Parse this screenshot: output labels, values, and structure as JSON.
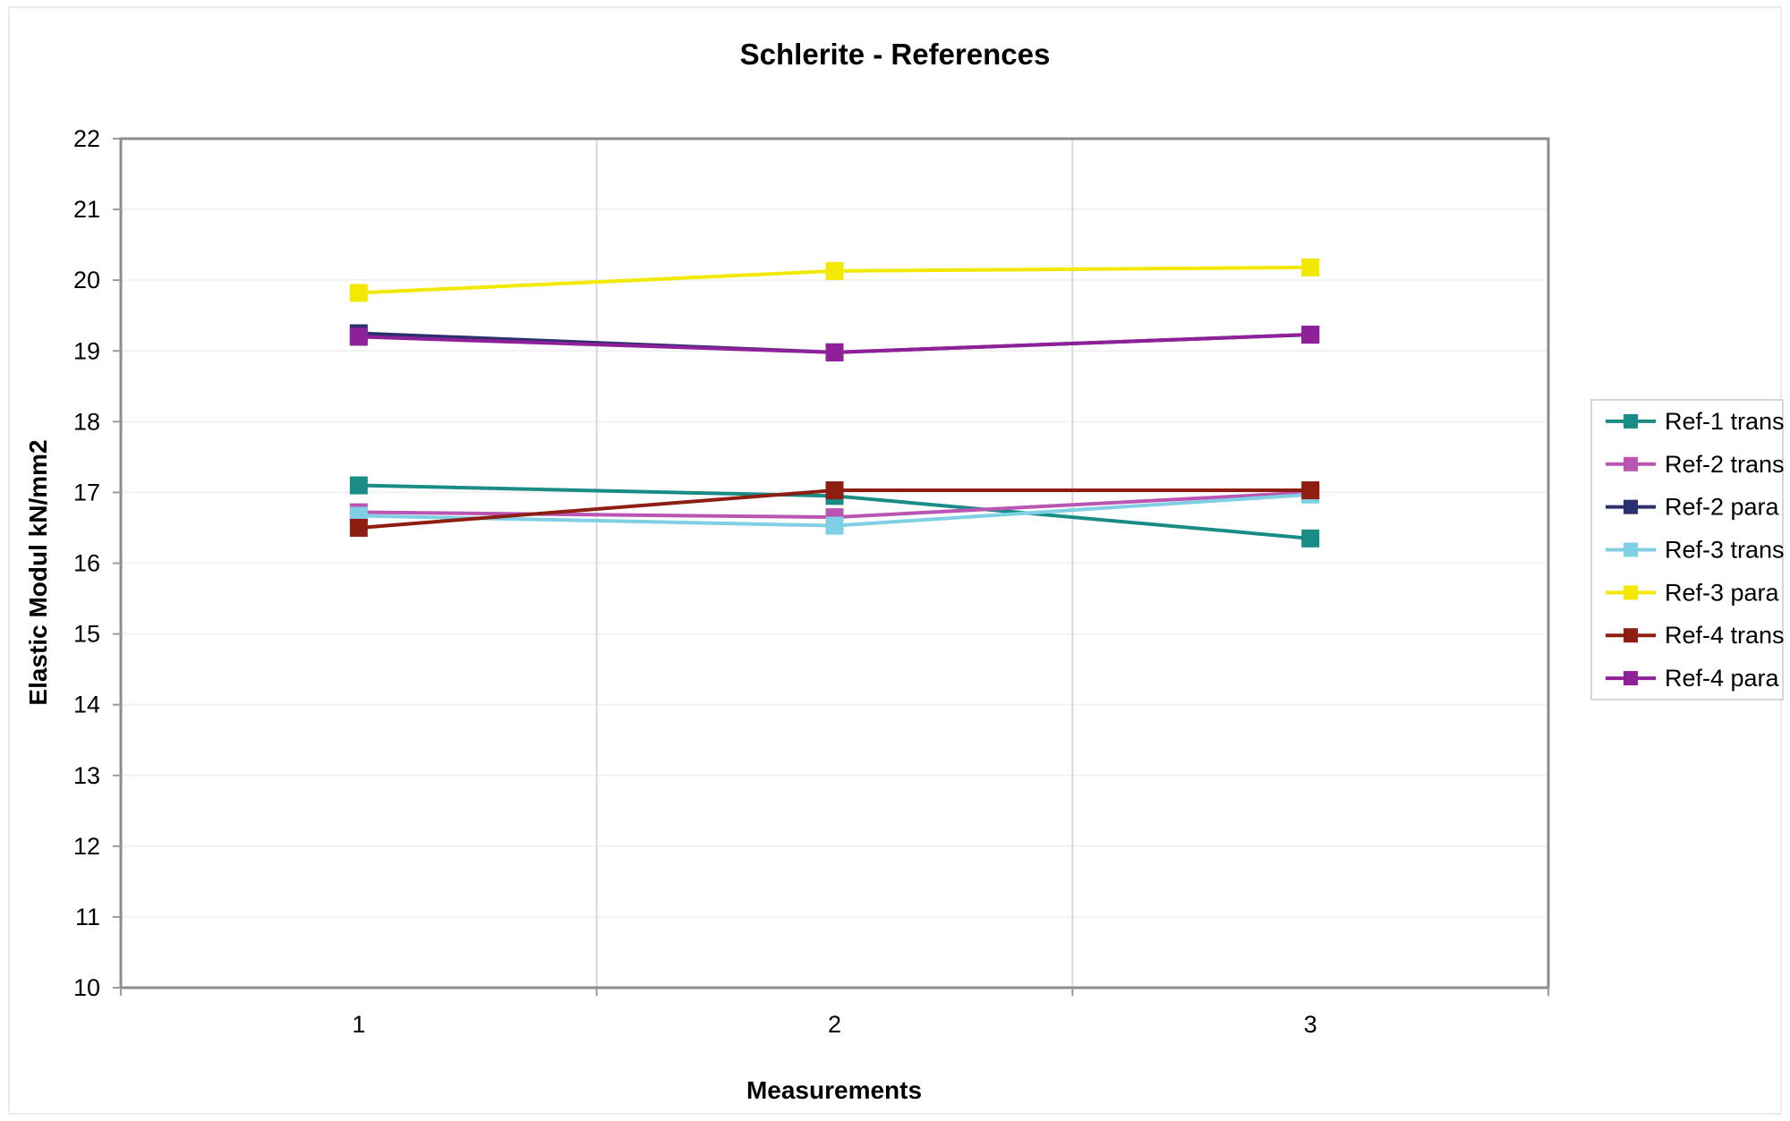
{
  "figure": {
    "background": "#ffffff",
    "outer_border_color": "#e4e4e4"
  },
  "chart_data": {
    "type": "line",
    "title": "Schlerite - References",
    "xlabel": "Measurements",
    "ylabel": "Elastic Modul kN/mm2",
    "categories": [
      "1",
      "2",
      "3"
    ],
    "ylim": [
      10,
      22
    ],
    "yticks": [
      10,
      11,
      12,
      13,
      14,
      15,
      16,
      17,
      18,
      19,
      20,
      21,
      22
    ],
    "grid": {
      "horizontal": true,
      "vertical": true
    },
    "legend_position": "right",
    "marker": "square",
    "series": [
      {
        "name": "Ref-1 trans",
        "color": "#1A8C86",
        "values": [
          17.1,
          16.95,
          16.35
        ]
      },
      {
        "name": "Ref-2 trans",
        "color": "#BA55B3",
        "values": [
          16.72,
          16.65,
          17.0
        ]
      },
      {
        "name": "Ref-2 para",
        "color": "#2C2F6E",
        "values": [
          19.25,
          18.98,
          19.23
        ]
      },
      {
        "name": "Ref-3 trans",
        "color": "#7FD0E4",
        "values": [
          16.67,
          16.53,
          16.97
        ]
      },
      {
        "name": "Ref-3 para",
        "color": "#F2E800",
        "values": [
          19.82,
          20.13,
          20.18
        ]
      },
      {
        "name": "Ref-4 trans",
        "color": "#8E1D12",
        "values": [
          16.5,
          17.03,
          17.03
        ]
      },
      {
        "name": "Ref-4 para",
        "color": "#8E219A",
        "values": [
          19.2,
          18.98,
          19.23
        ]
      }
    ],
    "colors": {
      "axis": "#8c8c8c",
      "h_gridline": "#f2f2f2",
      "v_gridline": "#d9d9d9",
      "tick": "#9a9a9a",
      "legend_border": "#c8c8c8",
      "text": "#000000"
    }
  }
}
